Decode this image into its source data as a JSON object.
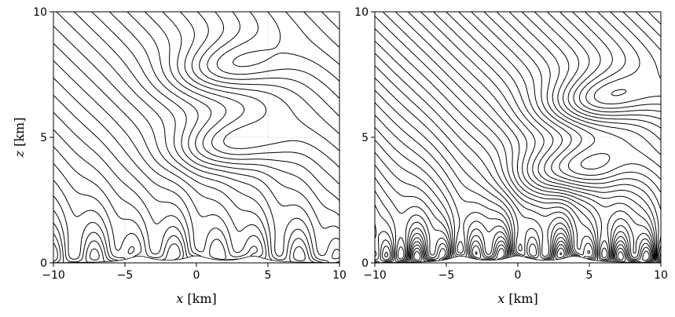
{
  "chart_data": [
    {
      "type": "contour",
      "panel": "left",
      "xlabel_var": "x",
      "xlabel_unit": " [km]",
      "ylabel_var": "z",
      "ylabel_unit": " [km]",
      "xlim": [
        -10,
        10
      ],
      "ylim": [
        0,
        10
      ],
      "xticks": [
        -10,
        -5,
        0,
        5,
        10
      ],
      "yticks": [
        0,
        5,
        10
      ],
      "xtick_labels": [
        "−10",
        "−5",
        "0",
        "5",
        "10"
      ],
      "ytick_labels": [
        "0",
        "5",
        "10"
      ],
      "grid": true,
      "terrain": {
        "peaks_x": [
          -4,
          0,
          4
        ],
        "peak_height_km": 0.25,
        "half_width_km": 1.0
      },
      "wave_centers": [
        {
          "x": 2.0,
          "z": 4.7
        },
        {
          "x": 2.0,
          "z": 7.8
        }
      ],
      "line_color": "#000000"
    },
    {
      "type": "contour",
      "panel": "right",
      "xlabel_var": "x",
      "xlabel_unit": " [km]",
      "ylabel_var": "",
      "ylabel_unit": "",
      "xlim": [
        -10,
        10
      ],
      "ylim": [
        0,
        10
      ],
      "xticks": [
        -10,
        -5,
        0,
        5,
        10
      ],
      "yticks": [
        0,
        5,
        10
      ],
      "xtick_labels": [
        "−10",
        "−5",
        "0",
        "5",
        "10"
      ],
      "ytick_labels": [
        "0",
        "5",
        "10"
      ],
      "grid": true,
      "terrain": {
        "peaks_x": [
          -4,
          0,
          4
        ],
        "peak_height_km": 0.25,
        "half_width_km": 1.0
      },
      "wave_centers": [
        {
          "x": 3.5,
          "z": 3.7
        },
        {
          "x": 5.5,
          "z": 6.5
        }
      ],
      "line_color": "#000000"
    }
  ]
}
